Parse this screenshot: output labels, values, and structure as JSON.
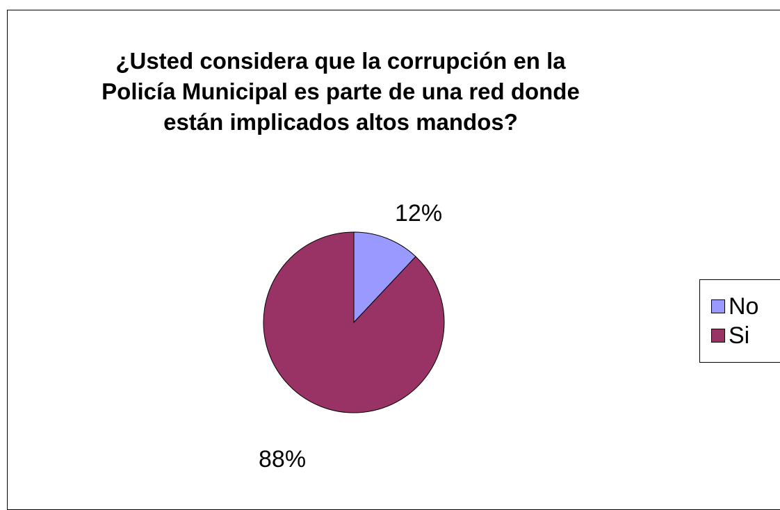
{
  "chart_data": {
    "type": "pie",
    "title_lines": [
      "¿Usted considera que la corrupción en la",
      "Policía Municipal es parte de una red donde",
      "están implicados altos mandos?"
    ],
    "categories": [
      "No",
      "Si"
    ],
    "values": [
      12,
      88
    ],
    "data_labels": [
      "12%",
      "88%"
    ],
    "colors": [
      "#9999FF",
      "#993366"
    ],
    "legend": {
      "placement": "right",
      "entries": [
        "No",
        "Si"
      ]
    }
  }
}
